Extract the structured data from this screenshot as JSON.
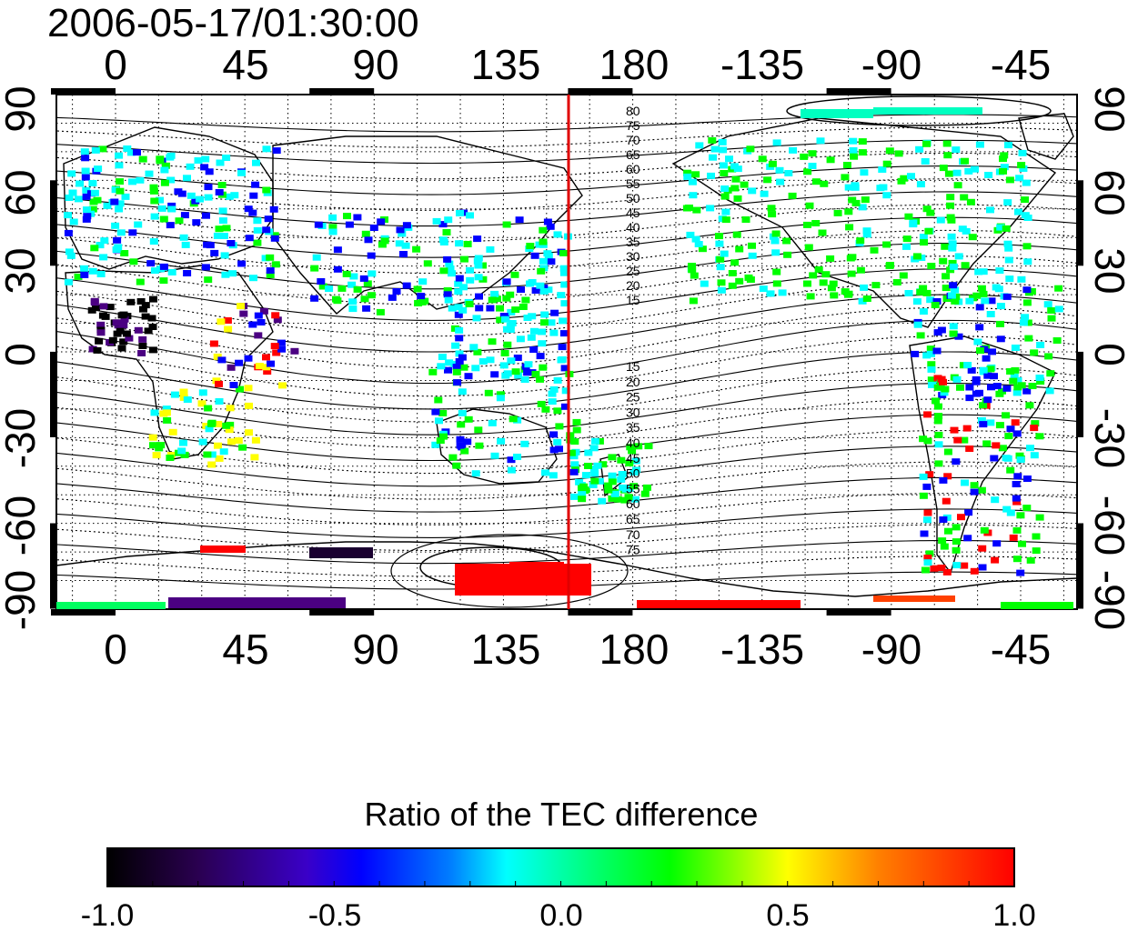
{
  "title": "2006-05-17/01:30:00",
  "map": {
    "lon_ticks_top": [
      "0",
      "45",
      "90",
      "135",
      "180",
      "-135",
      "-90",
      "-45"
    ],
    "lon_ticks_bottom": [
      "0",
      "45",
      "90",
      "135",
      "180",
      "-135",
      "-90",
      "-45"
    ],
    "lat_ticks_left": [
      "90",
      "60",
      "30",
      "0",
      "-30",
      "-60",
      "-90"
    ],
    "lat_ticks_right": [
      "90",
      "60",
      "30",
      "0",
      "-30",
      "-60",
      "-90"
    ],
    "marker_line_color": "#e00000",
    "contour_labels_north": [
      "80",
      "75",
      "70",
      "65",
      "60",
      "55",
      "50",
      "45",
      "40",
      "35",
      "30",
      "25",
      "20",
      "15"
    ],
    "contour_labels_south": [
      "15",
      "20",
      "25",
      "30",
      "35",
      "40",
      "45",
      "50",
      "55",
      "60",
      "65",
      "70",
      "75"
    ]
  },
  "colorbar": {
    "title": "Ratio of the TEC difference",
    "tick_labels": [
      "-1.0",
      "-0.5",
      "0.0",
      "0.5",
      "1.0"
    ],
    "colors": [
      "#000000",
      "#4b0082",
      "#0000ff",
      "#00ffff",
      "#00ff00",
      "#ffff00",
      "#ff0000"
    ]
  }
}
